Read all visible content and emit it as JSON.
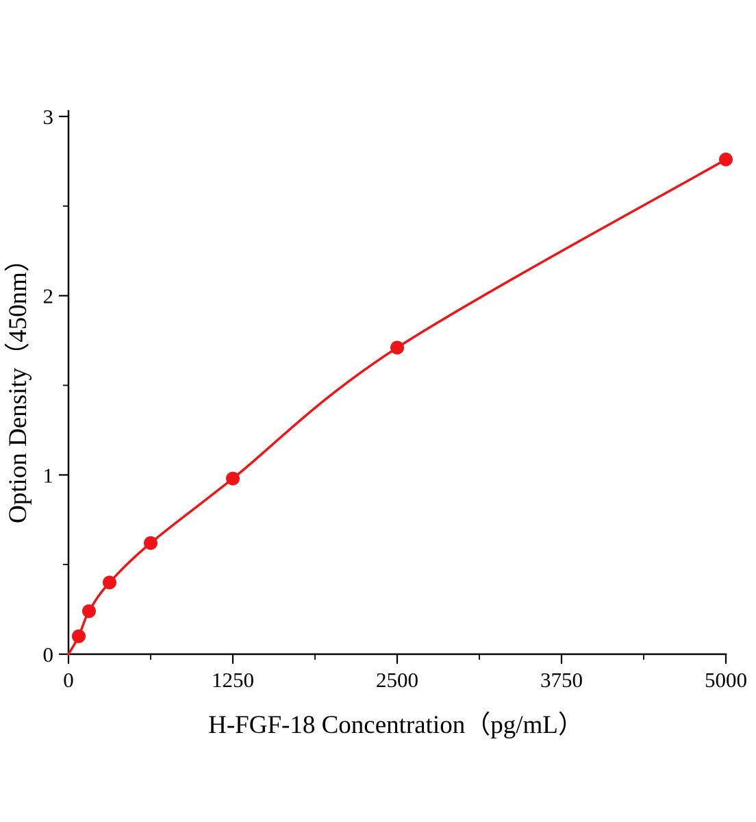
{
  "chart_data": {
    "type": "scatter",
    "title": "",
    "xlabel": "H-FGF-18 Concentration（pg/mL）",
    "ylabel": "Option Density（450nm）",
    "x": [
      78.1,
      156.3,
      312.5,
      625,
      1250,
      2500,
      5000
    ],
    "y": [
      0.1,
      0.24,
      0.4,
      0.62,
      0.98,
      1.71,
      2.76
    ],
    "curve_start": {
      "x": 0,
      "y": 0
    },
    "xlim": [
      0,
      5000
    ],
    "ylim": [
      0,
      3
    ],
    "x_major_ticks": [
      0,
      1250,
      2500,
      3750,
      5000
    ],
    "x_minor_ticks": [
      625,
      1875,
      3125,
      4375
    ],
    "y_major_ticks": [
      0,
      1,
      2,
      3
    ],
    "y_minor_ticks": [
      0.5,
      1.5,
      2.5
    ],
    "x_tick_labels": [
      "0",
      "1250",
      "2500",
      "3750",
      "5000"
    ],
    "y_tick_labels": [
      "0",
      "1",
      "2",
      "3"
    ],
    "line_color": "#ee1417",
    "marker_color": "#ee1417",
    "axis_color": "#000000",
    "grid": false,
    "legend": null
  }
}
